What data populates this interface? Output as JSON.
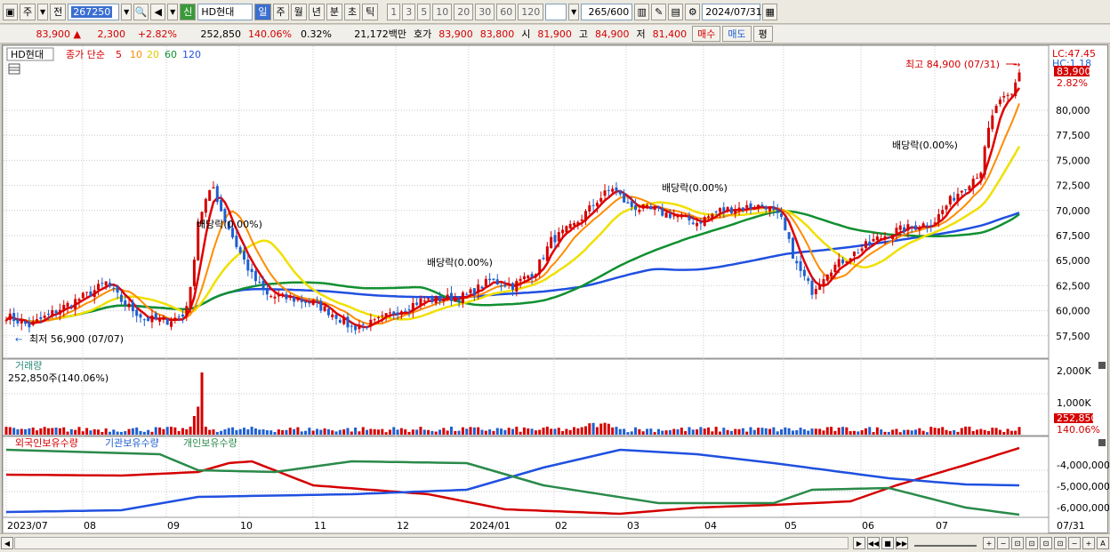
{
  "toolbar": {
    "market_label": "주",
    "prev_label": "전",
    "code": "267250",
    "name": "HD현대",
    "period_tabs": [
      "일",
      "주",
      "월",
      "년",
      "분",
      "초",
      "틱"
    ],
    "active_period": "일",
    "intervals": [
      "1",
      "3",
      "5",
      "10",
      "20",
      "30",
      "60",
      "120"
    ],
    "count": "265",
    "count_total": "/600",
    "date": "2024/07/31",
    "new_badge": "신"
  },
  "quote": {
    "price": "83,900",
    "change": "2,300",
    "change_pct": "+2.82%",
    "volume": "252,850",
    "volume_ratio": "140.06%",
    "turnover_pct": "0.32%",
    "amount": "21,172백만",
    "ask_label": "호가",
    "ask": "83,900",
    "bid": "83,800",
    "open_label": "시",
    "open": "81,900",
    "high_label": "고",
    "high": "84,900",
    "low_label": "저",
    "low": "81,400",
    "buy_label": "매수",
    "sell_label": "매도",
    "eval_label": "평"
  },
  "price_panel": {
    "legend_name": "HD현대",
    "legend_ma": "종가 단순",
    "ma_periods": [
      "5",
      "10",
      "20",
      "60",
      "120"
    ],
    "lc": "LC:47.45",
    "hc": "HC:1.18",
    "y_ticks": [
      "80,000",
      "77,500",
      "75,000",
      "72,500",
      "70,000",
      "67,500",
      "65,000",
      "62,500",
      "60,000",
      "57,500"
    ],
    "last_price": "83,900",
    "last_pct": "2.82%",
    "high_note": "최고 84,900 (07/31)",
    "low_note": "최저 56,900 (07/07)",
    "dividend": "배당락(0.00%)"
  },
  "volume_panel": {
    "title": "거래량",
    "value": "252,850주(140.06%)",
    "y_ticks": [
      "2,000K",
      "1,000K"
    ],
    "last": "252,850",
    "last_pct": "140.06%"
  },
  "holder_panel": {
    "foreign": "외국인보유수량",
    "inst": "기관보유수량",
    "retail": "개인보유수량",
    "y_ticks": [
      "-4,000,000",
      "-5,000,000",
      "-6,000,000"
    ]
  },
  "x_axis": {
    "labels": [
      "2023/07",
      "08",
      "09",
      "10",
      "11",
      "12",
      "2024/01",
      "02",
      "03",
      "04",
      "05",
      "06",
      "07"
    ],
    "right_label": "07/31"
  },
  "colors": {
    "up": "#d40000",
    "down": "#1f5fd0",
    "ma5": "#e00000",
    "ma10": "#ff8c00",
    "ma20": "#f0e000",
    "ma60": "#109030",
    "ma120": "#2050e0"
  }
}
